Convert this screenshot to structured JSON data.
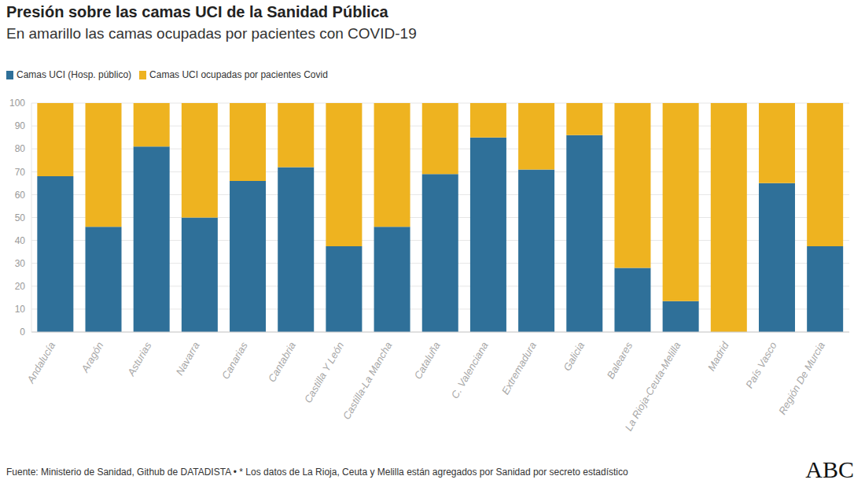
{
  "chart_data": {
    "type": "bar",
    "title": "Presión sobre las camas UCI de la Sanidad Pública",
    "subtitle": "En amarillo las camas ocupadas por pacientes con COVID-19",
    "categories": [
      "Andalucía",
      "Aragón",
      "Asturias",
      "Navarra",
      "Canarias",
      "Cantabria",
      "Castilla Y León",
      "Castilla-La Mancha",
      "Cataluña",
      "C. Valenciana",
      "Extremadura",
      "Galicia",
      "Baleares",
      "La Rioja-Ceuta-Melilla",
      "Madrid",
      "País Vasco",
      "Región De Murcia"
    ],
    "series": [
      {
        "name": "Camas UCI (Hosp. público)",
        "color": "#2f7099",
        "values": [
          68,
          46,
          81,
          50,
          66,
          72,
          37.5,
          46,
          69,
          85,
          71,
          86,
          28,
          13.5,
          0,
          65,
          37.5
        ]
      },
      {
        "name": "Camas UCI ocupadas por pacientes Covid",
        "color": "#eeb320",
        "values": [
          32,
          54,
          19,
          50,
          34,
          28,
          62.5,
          54,
          31,
          15,
          29,
          14,
          72,
          86.5,
          100,
          35,
          62.5
        ]
      }
    ],
    "stacked": true,
    "ylim": [
      0,
      100
    ],
    "yticks": [
      0,
      10,
      20,
      30,
      40,
      50,
      60,
      70,
      80,
      90,
      100
    ],
    "grid": true,
    "legend": "top left",
    "source": "Fuente: Ministerio de Sanidad, Github de DATADISTA • * Los datos de La Rioja, Ceuta y Melilla están agregados por Sanidad por secreto estadístico",
    "credit": "ABC"
  }
}
